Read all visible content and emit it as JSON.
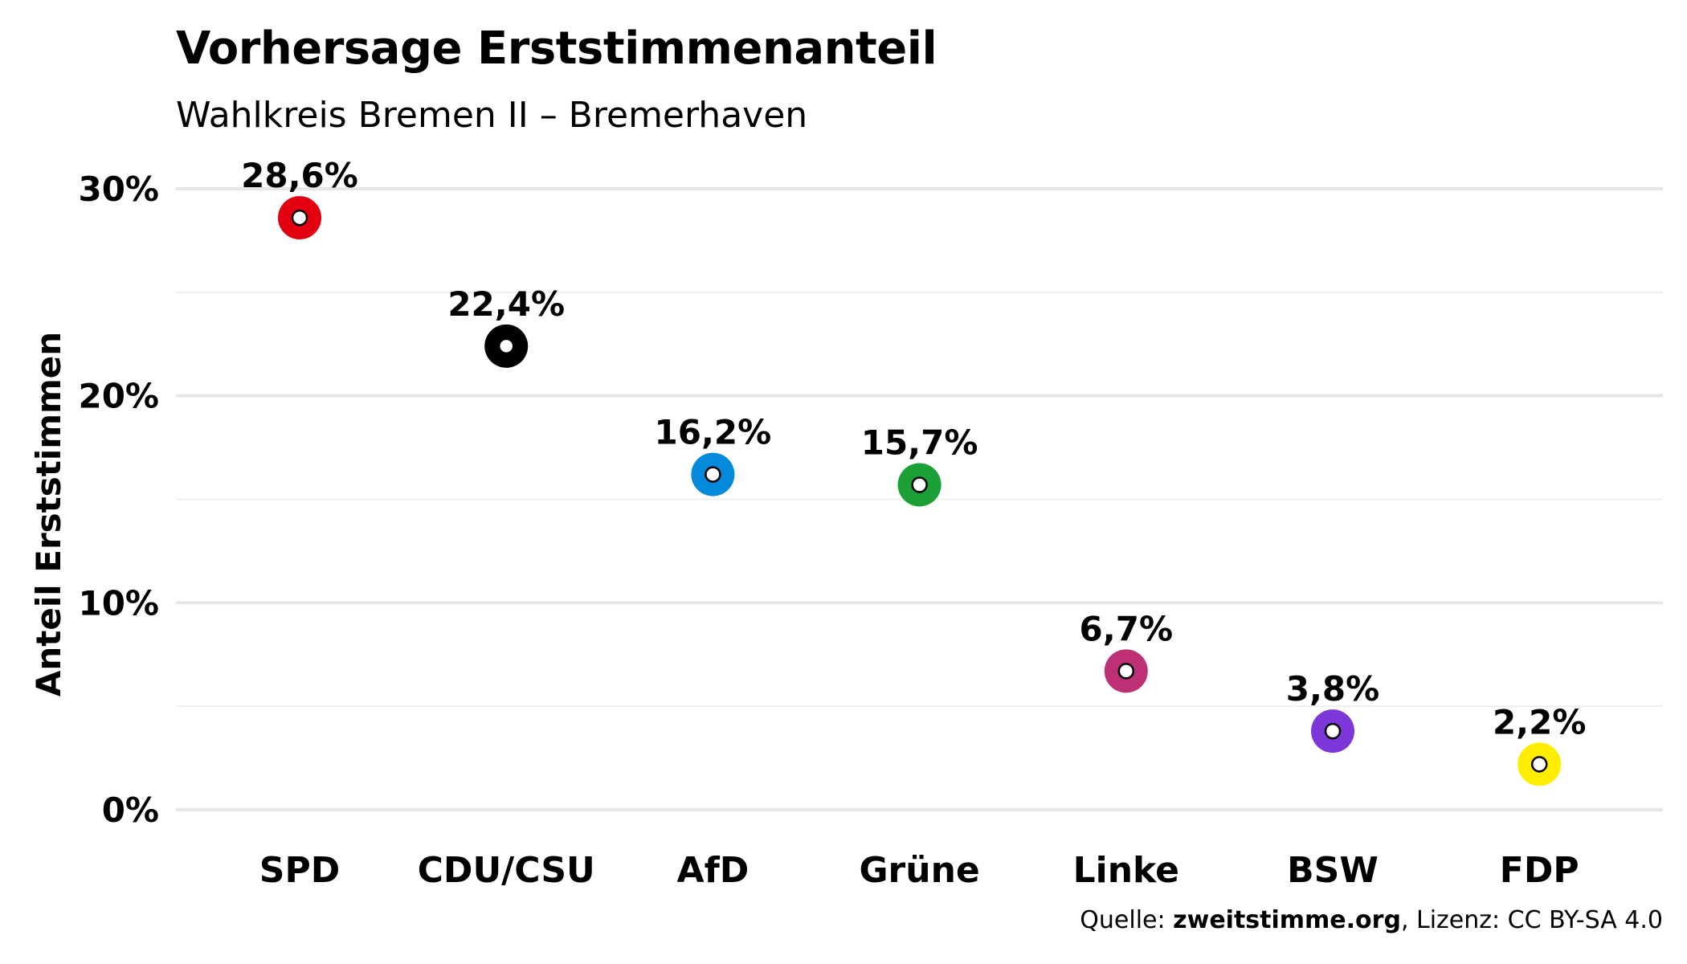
{
  "header": {
    "title": "Vorhersage Erststimmenanteil",
    "subtitle": "Wahlkreis Bremen II – Bremerhaven"
  },
  "caption": {
    "prefix": "Quelle: ",
    "source": "zweitstimme.org",
    "suffix": ", Lizenz: CC BY-SA 4.0"
  },
  "chart_data": {
    "type": "scatter",
    "title": "Vorhersage Erststimmenanteil",
    "subtitle": "Wahlkreis Bremen II – Bremerhaven",
    "xlabel": "",
    "ylabel": "Anteil Erststimmen",
    "ylim": [
      0,
      30
    ],
    "yticks": [
      0,
      10,
      20,
      30
    ],
    "ytick_labels": [
      "0%",
      "10%",
      "20%",
      "30%"
    ],
    "grid": true,
    "categories": [
      "SPD",
      "CDU/CSU",
      "AfD",
      "Grüne",
      "Linke",
      "BSW",
      "FDP"
    ],
    "values": [
      28.6,
      22.4,
      16.2,
      15.7,
      6.7,
      3.8,
      2.2
    ],
    "data_labels": [
      "28,6%",
      "22,4%",
      "16,2%",
      "15,7%",
      "6,7%",
      "3,8%",
      "2,2%"
    ],
    "colors": [
      "#e3000f",
      "#000000",
      "#0489db",
      "#1aa037",
      "#be3075",
      "#7d36d8",
      "#ffed00"
    ]
  }
}
